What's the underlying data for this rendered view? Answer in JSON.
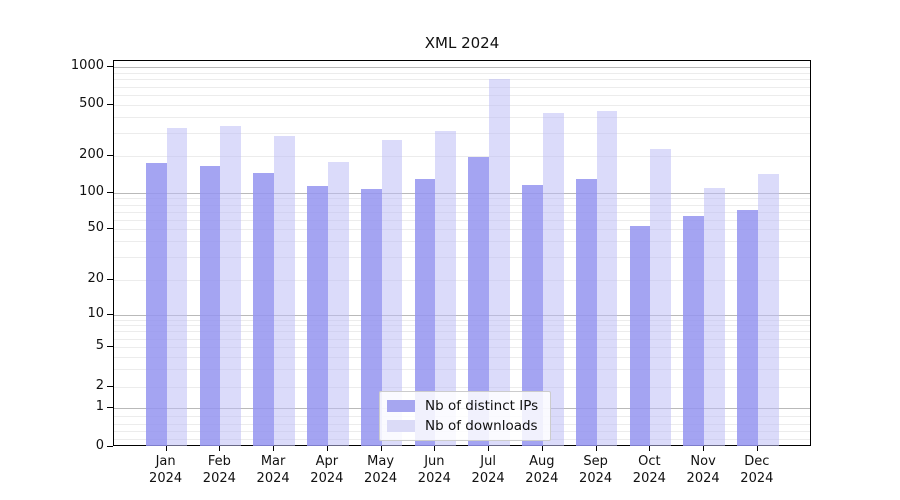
{
  "title": "XML 2024",
  "legend": {
    "items": [
      {
        "label": "Nb of distinct IPs",
        "color": "#a6a6f0"
      },
      {
        "label": "Nb of downloads",
        "color": "#dbdbf7"
      }
    ]
  },
  "chart_data": {
    "type": "bar",
    "title": "XML 2024",
    "scale": "symlog",
    "grid": true,
    "legend_position": "bottom-center",
    "ylim": [
      0,
      1000
    ],
    "y_ticks": [
      0,
      1,
      2,
      5,
      10,
      20,
      50,
      100,
      200,
      500,
      1000
    ],
    "categories": [
      "Jan",
      "Feb",
      "Mar",
      "Apr",
      "May",
      "Jun",
      "Jul",
      "Aug",
      "Sep",
      "Oct",
      "Nov",
      "Dec"
    ],
    "x_year_label": "2024",
    "series": [
      {
        "name": "Nb of distinct IPs",
        "color": "rgba(148,148,240,0.85)",
        "values": [
          175,
          165,
          146,
          114,
          107,
          131,
          197,
          116,
          129,
          53,
          64,
          72
        ]
      },
      {
        "name": "Nb of downloads",
        "color": "rgba(190,190,245,0.55)",
        "values": [
          330,
          340,
          288,
          178,
          265,
          315,
          810,
          435,
          445,
          225,
          110,
          143
        ]
      }
    ]
  }
}
